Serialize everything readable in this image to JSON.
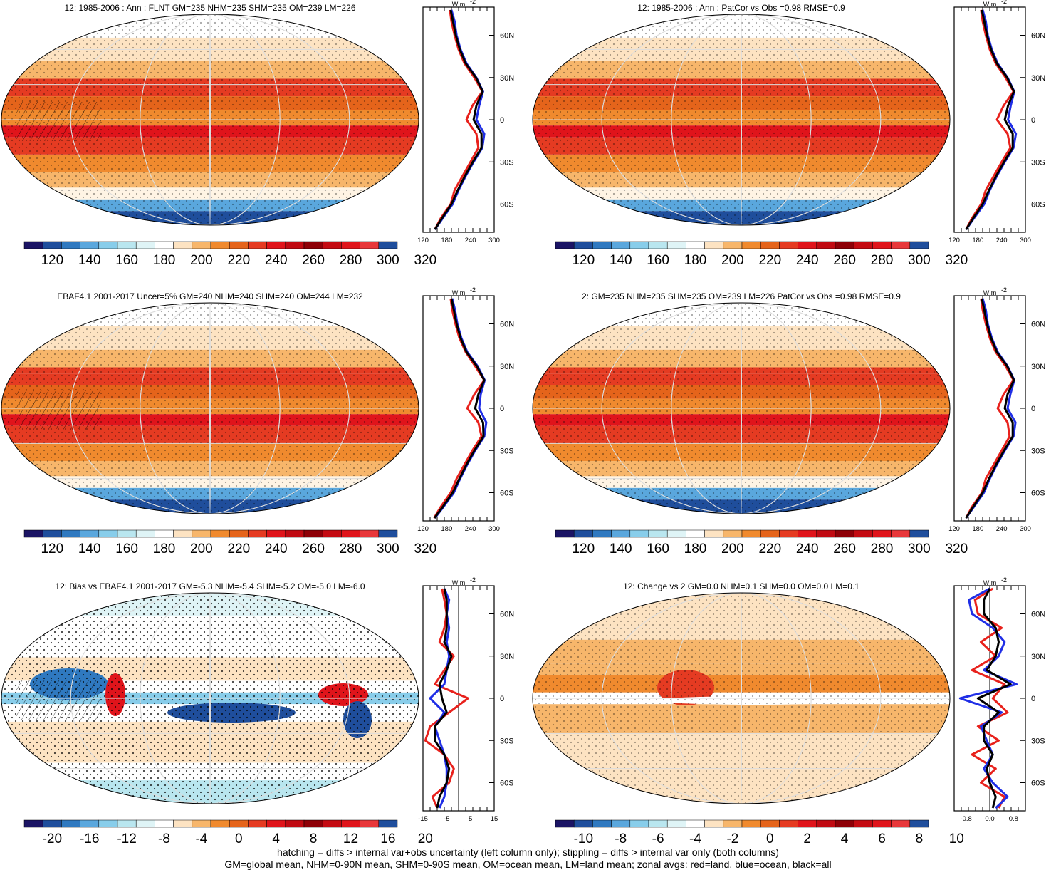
{
  "figure": {
    "footer_lines": [
      "hatching = diffs > internal var+obs uncertainty (left column only); stippling = diffs > internal var only (both columns)",
      "GM=global mean, NHM=0-90N mean, SHM=0-90S mean, OM=ocean mean, LM=land mean; zonal avgs: red=land, blue=ocean, black=all"
    ],
    "lat_ticks": [
      "60N",
      "30N",
      "0",
      "30S",
      "60S"
    ],
    "unit_label": "W m",
    "unit_exponent": "-2",
    "colors": {
      "land": "#e8211c",
      "ocean": "#1f2ee6",
      "all": "#000000",
      "absolute_palette": [
        "#1b1464",
        "#1f4e9c",
        "#2f79c0",
        "#5aa7dd",
        "#88cdea",
        "#b9e6ef",
        "#dff4f6",
        "#ffffff",
        "#fde3c2",
        "#f7b66b",
        "#f08a2e",
        "#e5641b",
        "#e53b22",
        "#e0141b",
        "#c00a12",
        "#8e0007",
        "#c40b12",
        "#e0141b",
        "#e8373a",
        "#1f4e9c"
      ],
      "diff_palette": [
        "#1b1464",
        "#1f4e9c",
        "#2f79c0",
        "#5aa7dd",
        "#88cdea",
        "#b9e6ef",
        "#dff4f6",
        "#ffffff",
        "#fde3c2",
        "#f7b66b",
        "#f08a2e",
        "#e5641b",
        "#e53b22",
        "#e0141b",
        "#c00a12",
        "#8e0007",
        "#c40b12",
        "#e0141b",
        "#e8373a",
        "#1f4e9c"
      ]
    }
  },
  "chart_data": [
    {
      "type": "heatmap",
      "title": "12: 1985-2006 : Ann : FLNT GM=235 NHM=235 SHM=235 OM=239 LM=226",
      "colorbar_labels": [
        "120",
        "140",
        "160",
        "180",
        "200",
        "220",
        "240",
        "260",
        "280",
        "300",
        "320"
      ],
      "profile_xticks": [
        "120",
        "180",
        "240",
        "300"
      ],
      "profile_xlim": [
        120,
        300
      ],
      "profile_lat": [
        -78,
        -70,
        -60,
        -50,
        -40,
        -30,
        -20,
        -10,
        0,
        10,
        20,
        30,
        40,
        50,
        60,
        70,
        78
      ],
      "profile_series": [
        {
          "key": "land",
          "values": [
            150,
            165,
            190,
            200,
            220,
            240,
            260,
            255,
            230,
            245,
            270,
            250,
            225,
            210,
            200,
            192,
            188
          ]
        },
        {
          "key": "ocean",
          "values": [
            150,
            170,
            195,
            210,
            228,
            248,
            270,
            275,
            255,
            262,
            272,
            255,
            230,
            215,
            205,
            200,
            192
          ]
        },
        {
          "key": "all",
          "values": [
            150,
            168,
            192,
            208,
            226,
            246,
            268,
            268,
            248,
            255,
            271,
            254,
            228,
            213,
            203,
            196,
            190
          ]
        }
      ],
      "has_zero_line": false
    },
    {
      "type": "heatmap",
      "title": "12: 1985-2006 : Ann : PatCor vs Obs =0.98 RMSE=0.9",
      "colorbar_labels": [
        "120",
        "140",
        "160",
        "180",
        "200",
        "220",
        "240",
        "260",
        "280",
        "300",
        "320"
      ],
      "profile_xticks": [
        "120",
        "180",
        "240",
        "300"
      ],
      "profile_xlim": [
        120,
        300
      ],
      "profile_lat": [
        -78,
        -70,
        -60,
        -50,
        -40,
        -30,
        -20,
        -10,
        0,
        10,
        20,
        30,
        40,
        50,
        60,
        70,
        78
      ],
      "profile_series": [
        {
          "key": "land",
          "values": [
            150,
            165,
            188,
            200,
            220,
            240,
            262,
            255,
            228,
            245,
            270,
            250,
            225,
            210,
            200,
            192,
            188
          ]
        },
        {
          "key": "ocean",
          "values": [
            150,
            170,
            196,
            210,
            228,
            248,
            270,
            276,
            256,
            263,
            272,
            255,
            230,
            215,
            205,
            200,
            192
          ]
        },
        {
          "key": "all",
          "values": [
            150,
            168,
            192,
            208,
            226,
            246,
            268,
            268,
            248,
            256,
            271,
            254,
            228,
            213,
            203,
            196,
            190
          ]
        }
      ],
      "has_zero_line": false
    },
    {
      "type": "heatmap",
      "title": "EBAF4.1 2001-2017 Uncer=5% GM=240 NHM=240 SHM=240 OM=244 LM=232",
      "colorbar_labels": [
        "120",
        "140",
        "160",
        "180",
        "200",
        "220",
        "240",
        "260",
        "280",
        "300",
        "320"
      ],
      "profile_xticks": [
        "120",
        "180",
        "240",
        "300"
      ],
      "profile_xlim": [
        120,
        300
      ],
      "profile_lat": [
        -78,
        -70,
        -60,
        -50,
        -40,
        -30,
        -20,
        -10,
        0,
        10,
        20,
        30,
        40,
        50,
        60,
        70,
        78
      ],
      "profile_series": [
        {
          "key": "land",
          "values": [
            148,
            165,
            190,
            205,
            225,
            245,
            268,
            260,
            232,
            250,
            275,
            252,
            228,
            212,
            202,
            194,
            190
          ]
        },
        {
          "key": "ocean",
          "values": [
            150,
            172,
            198,
            214,
            232,
            252,
            275,
            280,
            262,
            266,
            276,
            258,
            232,
            217,
            207,
            201,
            194
          ]
        },
        {
          "key": "all",
          "values": [
            149,
            170,
            195,
            212,
            230,
            250,
            273,
            272,
            252,
            260,
            275,
            256,
            230,
            215,
            205,
            198,
            192
          ]
        }
      ],
      "has_zero_line": false
    },
    {
      "type": "heatmap",
      "title": "2: GM=235 NHM=235 SHM=235 OM=239 LM=226 PatCor vs Obs =0.98 RMSE=0.9",
      "colorbar_labels": [
        "120",
        "140",
        "160",
        "180",
        "200",
        "220",
        "240",
        "260",
        "280",
        "300",
        "320"
      ],
      "profile_xticks": [
        "120",
        "180",
        "240",
        "300"
      ],
      "profile_xlim": [
        120,
        300
      ],
      "profile_lat": [
        -78,
        -70,
        -60,
        -50,
        -40,
        -30,
        -20,
        -10,
        0,
        10,
        20,
        30,
        40,
        50,
        60,
        70,
        78
      ],
      "profile_series": [
        {
          "key": "land",
          "values": [
            150,
            165,
            190,
            200,
            220,
            240,
            260,
            255,
            230,
            245,
            270,
            250,
            225,
            210,
            200,
            192,
            188
          ]
        },
        {
          "key": "ocean",
          "values": [
            150,
            170,
            195,
            210,
            228,
            248,
            270,
            275,
            255,
            262,
            272,
            255,
            230,
            215,
            205,
            200,
            192
          ]
        },
        {
          "key": "all",
          "values": [
            150,
            168,
            192,
            208,
            226,
            246,
            268,
            268,
            248,
            255,
            271,
            254,
            228,
            213,
            203,
            196,
            190
          ]
        }
      ],
      "has_zero_line": false
    },
    {
      "type": "heatmap",
      "title": "12: Bias vs EBAF4.1 2001-2017 GM=-5.3 NHM=-5.4 SHM=-5.2 OM=-5.0 LM=-6.0",
      "colorbar_labels": [
        "-20",
        "-16",
        "-12",
        "-8",
        "-4",
        "0",
        "4",
        "8",
        "12",
        "16",
        "20"
      ],
      "profile_xticks": [
        "-15",
        "-5",
        "5",
        "15"
      ],
      "profile_xlim": [
        -15,
        15
      ],
      "profile_lat": [
        -78,
        -70,
        -60,
        -50,
        -40,
        -30,
        -20,
        -10,
        0,
        10,
        20,
        30,
        40,
        50,
        60,
        70,
        78
      ],
      "profile_series": [
        {
          "key": "land",
          "values": [
            -9,
            -11,
            -4,
            -2,
            -6,
            -14,
            -12,
            -4,
            4,
            -10,
            -6,
            -2,
            -8,
            -6,
            -5,
            -6,
            -7
          ]
        },
        {
          "key": "ocean",
          "values": [
            -8,
            -6,
            -5,
            -5,
            -6,
            -8,
            -10,
            -6,
            -12,
            -6,
            -5,
            -4,
            -5,
            -4,
            -5,
            -4,
            -6
          ]
        },
        {
          "key": "all",
          "values": [
            -9,
            -8,
            -5,
            -4,
            -6,
            -10,
            -10,
            -5,
            -7,
            -8,
            -5,
            -3,
            -6,
            -5,
            -5,
            -5,
            -6
          ]
        }
      ],
      "has_zero_line": true
    },
    {
      "type": "heatmap",
      "title": "12: Change vs 2 GM=0.0 NHM=0.1 SHM=0.0 OM=0.0 LM=0.1",
      "colorbar_labels": [
        "-10",
        "-8",
        "-6",
        "-4",
        "-2",
        "0",
        "2",
        "4",
        "6",
        "8",
        "10"
      ],
      "profile_xticks": [
        "-0.8",
        "0.0",
        "0.8"
      ],
      "profile_xlim": [
        -1.2,
        1.2
      ],
      "profile_lat": [
        -78,
        -70,
        -60,
        -50,
        -40,
        -30,
        -20,
        -10,
        0,
        10,
        20,
        30,
        40,
        50,
        60,
        70,
        78
      ],
      "profile_series": [
        {
          "key": "land",
          "values": [
            0.3,
            0.5,
            -0.3,
            0.2,
            -0.6,
            0.3,
            -0.4,
            0.6,
            0.1,
            0.5,
            -0.6,
            0.2,
            -0.3,
            0.4,
            -0.4,
            -0.5,
            0.1
          ]
        },
        {
          "key": "ocean",
          "values": [
            0.2,
            0.6,
            0.1,
            -0.2,
            0.1,
            -0.1,
            -0.3,
            0.4,
            -1.0,
            0.9,
            -0.2,
            0.3,
            0.5,
            0.1,
            -0.6,
            -0.7,
            0.0
          ]
        },
        {
          "key": "all",
          "values": [
            0.1,
            0.2,
            0.0,
            -0.1,
            0.1,
            -0.2,
            -0.2,
            0.3,
            -0.4,
            0.7,
            -0.1,
            0.2,
            0.3,
            0.2,
            -0.2,
            -0.2,
            0.0
          ]
        }
      ],
      "has_zero_line": true
    }
  ]
}
